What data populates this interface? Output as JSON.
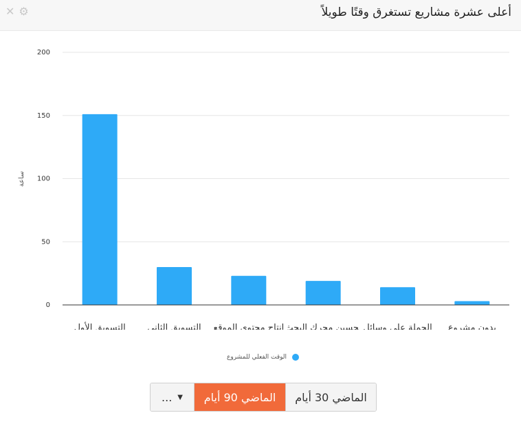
{
  "header": {
    "title": "أعلى عشرة مشاريع تستغرق وقتًا طويلاً",
    "close_icon": "✕",
    "settings_icon": "⚙"
  },
  "chart_data": {
    "type": "bar",
    "categories": [
      "التسويق الأول",
      "التسويق الثانى",
      "إنتاج محتوى الموقع",
      "تحسين محرك البحث",
      "الحملة على وسائل",
      "بدون مشروع"
    ],
    "values": [
      151,
      30,
      23,
      19,
      14,
      3
    ],
    "ylabel": "ساعة",
    "ylim": [
      0,
      200
    ],
    "yticks": [
      0,
      50,
      100,
      150,
      200
    ],
    "grid": true,
    "legend": "bottom-center",
    "series": [
      {
        "name": "الوقت الفعلي للمشروع",
        "color": "#2eaaf7"
      }
    ]
  },
  "legend": {
    "label": "الوقت الفعلي للمشروع"
  },
  "range_buttons": {
    "more_label": "...",
    "more_caret": "▼",
    "days90_label": "الماضي 90 أيام",
    "days30_label": "الماضي 30 أيام"
  },
  "colors": {
    "bar": "#2eaaf7",
    "active_button": "#f16a3a"
  }
}
